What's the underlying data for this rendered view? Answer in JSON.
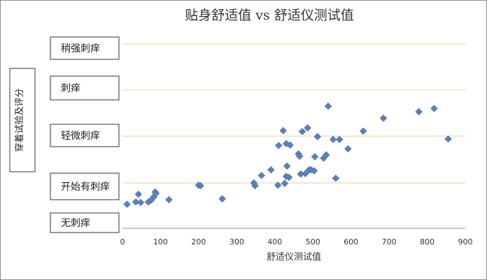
{
  "chart_data": {
    "type": "scatter",
    "title": "贴身舒适值 vs 舒适仪测试值",
    "xlabel": "舒适仪测试值",
    "ylabel": "穿着试验及评分",
    "xlim": [
      0,
      900
    ],
    "x_ticks": [
      0,
      100,
      200,
      300,
      400,
      500,
      600,
      700,
      800,
      900
    ],
    "y_categories": [
      "无刺痒",
      "开始有刺痒",
      "轻微刺痒",
      "刺痒",
      "稍强刺痒"
    ],
    "ylim": [
      0,
      4
    ],
    "grid": true,
    "marker_color": "#5b80b8",
    "points": [
      {
        "x": 12,
        "y": 0.53
      },
      {
        "x": 35,
        "y": 0.58
      },
      {
        "x": 42,
        "y": 0.75
      },
      {
        "x": 48,
        "y": 0.57
      },
      {
        "x": 68,
        "y": 0.58
      },
      {
        "x": 75,
        "y": 0.62
      },
      {
        "x": 82,
        "y": 0.69
      },
      {
        "x": 86,
        "y": 0.8
      },
      {
        "x": 88,
        "y": 0.77
      },
      {
        "x": 122,
        "y": 0.63
      },
      {
        "x": 200,
        "y": 0.95
      },
      {
        "x": 205,
        "y": 0.94
      },
      {
        "x": 262,
        "y": 0.65
      },
      {
        "x": 345,
        "y": 1.0
      },
      {
        "x": 348,
        "y": 0.94
      },
      {
        "x": 365,
        "y": 1.16
      },
      {
        "x": 390,
        "y": 1.28
      },
      {
        "x": 408,
        "y": 0.95
      },
      {
        "x": 410,
        "y": 1.8
      },
      {
        "x": 422,
        "y": 2.12
      },
      {
        "x": 426,
        "y": 0.99
      },
      {
        "x": 430,
        "y": 1.84
      },
      {
        "x": 430,
        "y": 1.14
      },
      {
        "x": 432,
        "y": 1.36
      },
      {
        "x": 437,
        "y": 1.12
      },
      {
        "x": 440,
        "y": 1.81
      },
      {
        "x": 462,
        "y": 1.62
      },
      {
        "x": 465,
        "y": 1.57
      },
      {
        "x": 468,
        "y": 1.19
      },
      {
        "x": 472,
        "y": 2.1
      },
      {
        "x": 480,
        "y": 1.2
      },
      {
        "x": 486,
        "y": 2.18
      },
      {
        "x": 490,
        "y": 1.28
      },
      {
        "x": 495,
        "y": 1.28
      },
      {
        "x": 503,
        "y": 1.26
      },
      {
        "x": 505,
        "y": 1.56
      },
      {
        "x": 512,
        "y": 1.99
      },
      {
        "x": 528,
        "y": 1.53
      },
      {
        "x": 535,
        "y": 1.6
      },
      {
        "x": 540,
        "y": 2.65
      },
      {
        "x": 553,
        "y": 1.93
      },
      {
        "x": 560,
        "y": 1.1
      },
      {
        "x": 570,
        "y": 1.93
      },
      {
        "x": 592,
        "y": 1.73
      },
      {
        "x": 632,
        "y": 2.11
      },
      {
        "x": 685,
        "y": 2.39
      },
      {
        "x": 778,
        "y": 2.53
      },
      {
        "x": 818,
        "y": 2.6
      },
      {
        "x": 855,
        "y": 1.94
      }
    ]
  }
}
